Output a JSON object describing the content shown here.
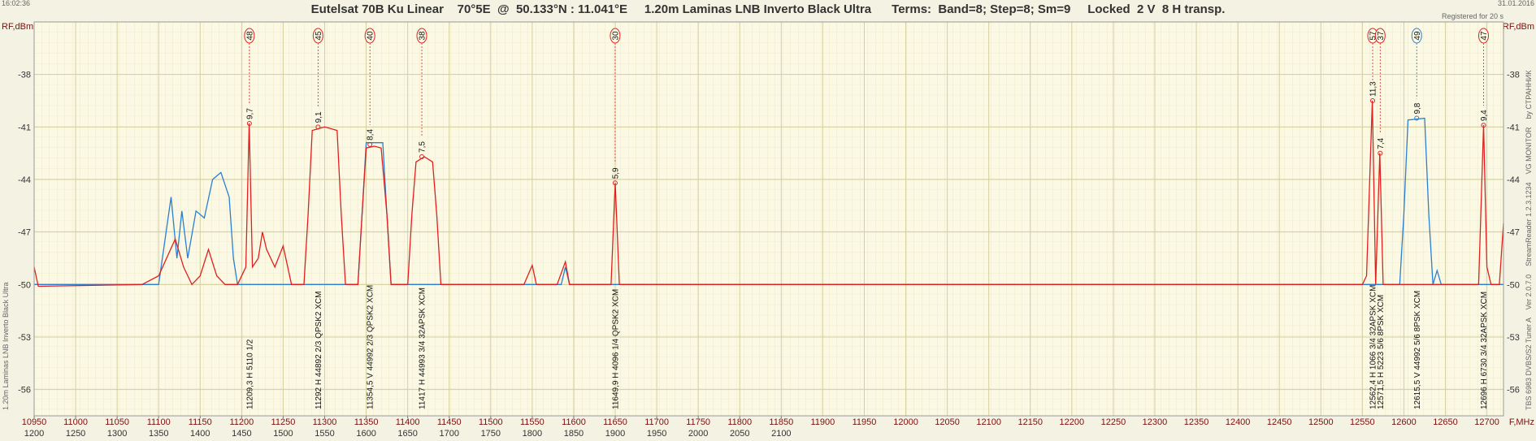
{
  "header": {
    "time": "16:02:36",
    "date": "31.01.2016",
    "title": "Eutelsat 70B Ku Linear    70°5E  @  50.133°N : 11.041°E     1.20m Laminas LNB Inverto Black Ultra      Terms:  Band=8; Step=8; Sm=9     Locked  2 V  8 H transp.",
    "registered": "Registered for 20 s"
  },
  "chart_data": {
    "type": "line",
    "ylabel": "RF,dBm",
    "ylabel_right": "RF,dBm",
    "xlabel": "F,MHz",
    "left_caption": "1.20m Laminas LNB Inverto Black Ultra",
    "right_caption": "TBS 6983 DVBS/S2 Tuner A    Ver 2.0.7.0    StreamReader 1.2.3.1234    VG MONITOR    by СТРАННИК",
    "xlim": [
      10950,
      12720
    ],
    "ylim": [
      -57.5,
      -35
    ],
    "x2lim": [
      1200,
      2970
    ],
    "xticks": [
      10950,
      11000,
      11050,
      11100,
      11150,
      11200,
      11250,
      11300,
      11350,
      11400,
      11450,
      11500,
      11550,
      11600,
      11650,
      11700,
      11750,
      11800,
      11850,
      11900,
      11950,
      12000,
      12050,
      12100,
      12150,
      12200,
      12250,
      12300,
      12350,
      12400,
      12450,
      12500,
      12550,
      12600,
      12650,
      12700
    ],
    "x2ticks": [
      1200,
      1250,
      1300,
      1350,
      1400,
      1450,
      1500,
      1550,
      1600,
      1650,
      1700,
      1750,
      1800,
      1850,
      1900,
      1950,
      2000,
      2050,
      2100
    ],
    "yticks": [
      -38,
      -41,
      -44,
      -47,
      -50,
      -53,
      -56
    ],
    "grid": true,
    "series": [
      {
        "color": "#2a7fd0",
        "x": [
          10950,
          11100,
          11115,
          11122,
          11128,
          11135,
          11145,
          11155,
          11165,
          11175,
          11185,
          11190,
          11195,
          11340,
          11345,
          11350,
          11370,
          11375,
          11380,
          11585,
          11590,
          11595,
          12595,
          12600,
          12605,
          12625,
          12630,
          12635,
          12640,
          12645,
          12720
        ],
        "values": [
          -50,
          -50,
          -45,
          -48.5,
          -45.8,
          -48.5,
          -45.8,
          -46.2,
          -44,
          -43.6,
          -45,
          -48.5,
          -50,
          -50,
          -46,
          -41.9,
          -41.9,
          -46,
          -50,
          -50,
          -49,
          -50,
          -50,
          -46,
          -40.6,
          -40.5,
          -46,
          -50,
          -49.2,
          -50,
          -50
        ]
      },
      {
        "color": "#e02020",
        "x": [
          10950,
          10955,
          11080,
          11100,
          11120,
          11130,
          11140,
          11150,
          11160,
          11170,
          11180,
          11195,
          11205,
          11209,
          11213,
          11220,
          11225,
          11230,
          11240,
          11250,
          11260,
          11275,
          11280,
          11285,
          11300,
          11315,
          11320,
          11325,
          11340,
          11345,
          11350,
          11360,
          11368,
          11375,
          11380,
          11400,
          11405,
          11410,
          11420,
          11430,
          11435,
          11440,
          11540,
          11550,
          11555,
          11580,
          11590,
          11595,
          11645,
          11650,
          11655,
          12550,
          12555,
          12562,
          12566,
          12571,
          12575,
          12690,
          12696,
          12700,
          12705,
          12715,
          12720
        ],
        "values": [
          -49,
          -50.1,
          -50,
          -49.5,
          -47.4,
          -49,
          -50,
          -49.5,
          -48,
          -49.5,
          -50,
          -50,
          -49,
          -40.8,
          -49,
          -48.5,
          -47,
          -48,
          -49,
          -47.8,
          -50,
          -50,
          -46,
          -41.2,
          -41,
          -41.2,
          -46,
          -50,
          -50,
          -46,
          -42.2,
          -42.1,
          -42.2,
          -46,
          -50,
          -50,
          -46,
          -43,
          -42.7,
          -43,
          -46,
          -50,
          -50,
          -48.9,
          -50,
          -50,
          -48.7,
          -50,
          -50,
          -44.2,
          -50,
          -50,
          -49.5,
          -39.5,
          -50,
          -42.5,
          -50,
          -50,
          -40.9,
          -49,
          -50,
          -50,
          -46.5
        ]
      }
    ],
    "transponders": [
      {
        "freq": 11209.3,
        "level": -40.8,
        "num": "48",
        "snr": "9,7",
        "desc": "11209,3 H  5110  1/2",
        "color": "#e02020"
      },
      {
        "freq": 11292,
        "level": -41,
        "num": "45",
        "snr": "9,1",
        "desc": "11292 H 44892 2/3  QPSK2 XCM",
        "color": "#e02020"
      },
      {
        "freq": 11354.5,
        "level": -42,
        "num": "40",
        "snr": "8,4",
        "desc": "11354,5 V 44992 2/3  QPSK2 XCM",
        "color": "#e02020"
      },
      {
        "freq": 11417,
        "level": -42.7,
        "num": "38",
        "snr": "7,5",
        "desc": "11417 H 44993 3/4 32APSK XCM",
        "color": "#e02020"
      },
      {
        "freq": 11649.9,
        "level": -44.2,
        "num": "30",
        "snr": "5,9",
        "desc": "11649,9 H  4096 1/4  QPSK2 XCM",
        "color": "#e02020"
      },
      {
        "freq": 12562.4,
        "level": -39.5,
        "num": "57",
        "snr": "11,3",
        "desc": "12562,4 H  1066 3/4 32APSK XCM",
        "color": "#e02020"
      },
      {
        "freq": 12571.5,
        "level": -42.5,
        "num": "37",
        "snr": "7,4",
        "desc": "12571,5 H  5223 5/6  8PSK XCM",
        "color": "#e02020"
      },
      {
        "freq": 12615.5,
        "level": -40.5,
        "num": "49",
        "snr": "9,8",
        "desc": "12615,5 V 44992 5/6  8PSK XCM",
        "color": "#2a7fd0"
      },
      {
        "freq": 12696,
        "level": -40.9,
        "num": "47",
        "snr": "9,4",
        "desc": "12696 H  6730 3/4 32APSK XCM",
        "color": "#e02020"
      }
    ]
  }
}
